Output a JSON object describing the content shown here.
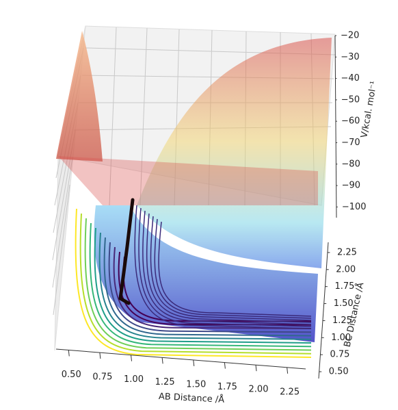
{
  "chart_data": {
    "type": "surface3d",
    "xlabel": "AB Distance /Å",
    "ylabel": "BC Distance /Å",
    "zlabel": "V/kcal. mol⁻¹",
    "xlim": [
      0.4,
      2.4
    ],
    "xticks": [
      {
        "value": 0.5,
        "label": "0.50"
      },
      {
        "value": 0.75,
        "label": "0.75"
      },
      {
        "value": 1.0,
        "label": "1.00"
      },
      {
        "value": 1.25,
        "label": "1.25"
      },
      {
        "value": 1.5,
        "label": "1.50"
      },
      {
        "value": 1.75,
        "label": "1.75"
      },
      {
        "value": 2.0,
        "label": "2.00"
      },
      {
        "value": 2.25,
        "label": "2.25"
      }
    ],
    "ylim": [
      0.4,
      2.4
    ],
    "yticks": [
      {
        "value": 0.5,
        "label": "0.50"
      },
      {
        "value": 0.75,
        "label": "0.75"
      },
      {
        "value": 1.0,
        "label": "1.00"
      },
      {
        "value": 1.25,
        "label": "1.25"
      },
      {
        "value": 1.5,
        "label": "1.50"
      },
      {
        "value": 1.75,
        "label": "1.75"
      },
      {
        "value": 2.0,
        "label": "2.00"
      },
      {
        "value": 2.25,
        "label": "2.25"
      }
    ],
    "zlim": [
      -105,
      -20
    ],
    "zticks": [
      {
        "value": -20,
        "label": "−20"
      },
      {
        "value": -30,
        "label": "−30"
      },
      {
        "value": -40,
        "label": "−40"
      },
      {
        "value": -50,
        "label": "−50"
      },
      {
        "value": -60,
        "label": "−60"
      },
      {
        "value": -70,
        "label": "−70"
      },
      {
        "value": -80,
        "label": "−80"
      },
      {
        "value": -90,
        "label": "−90"
      },
      {
        "value": -100,
        "label": "−100"
      }
    ]
  }
}
